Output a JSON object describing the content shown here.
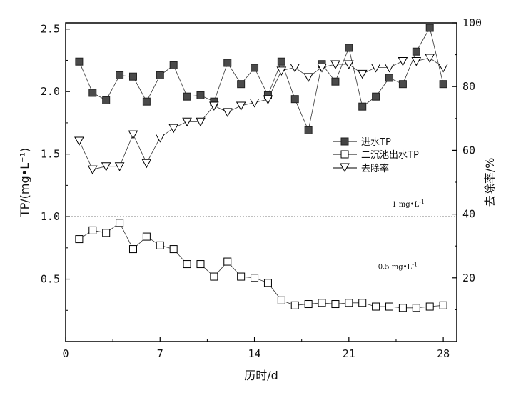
{
  "chart_data": {
    "type": "line",
    "title": "",
    "xlabel": "历时/d",
    "ylabel": "TP/(mg•L⁻¹)",
    "y2label": "去除率/%",
    "xlim": [
      0,
      29
    ],
    "ylim": [
      0,
      2.55
    ],
    "y2lim": [
      0,
      100
    ],
    "xticks": [
      0,
      7,
      14,
      21,
      28
    ],
    "yticks": [
      0.5,
      1.0,
      1.5,
      2.0,
      2.5
    ],
    "y2ticks": [
      20,
      40,
      60,
      80,
      100
    ],
    "reference_lines": [
      {
        "value": 1.0,
        "label": "1 mg•L",
        "sup": "-1"
      },
      {
        "value": 0.5,
        "label": "0.5 mg•L",
        "sup": "-1"
      }
    ],
    "series": [
      {
        "name": "进水TP",
        "axis": "left",
        "marker": "filled-square",
        "x": [
          1,
          2,
          3,
          4,
          5,
          6,
          7,
          8,
          9,
          10,
          11,
          12,
          13,
          14,
          15,
          16,
          17,
          18,
          19,
          20,
          21,
          22,
          23,
          24,
          25,
          26,
          27,
          28
        ],
        "values": [
          2.24,
          1.99,
          1.93,
          2.13,
          2.12,
          1.92,
          2.13,
          2.21,
          1.96,
          1.97,
          1.92,
          2.23,
          2.06,
          2.19,
          1.97,
          2.24,
          1.94,
          1.69,
          2.22,
          2.08,
          2.35,
          1.88,
          1.96,
          2.11,
          2.06,
          2.32,
          2.51,
          2.06
        ]
      },
      {
        "name": "二沉池出水TP",
        "axis": "left",
        "marker": "open-square",
        "x": [
          1,
          2,
          3,
          4,
          5,
          6,
          7,
          8,
          9,
          10,
          11,
          12,
          13,
          14,
          15,
          16,
          17,
          18,
          19,
          20,
          21,
          22,
          23,
          24,
          25,
          26,
          27,
          28
        ],
        "values": [
          0.82,
          0.89,
          0.87,
          0.95,
          0.74,
          0.84,
          0.77,
          0.74,
          0.62,
          0.62,
          0.52,
          0.64,
          0.52,
          0.51,
          0.47,
          0.33,
          0.29,
          0.3,
          0.31,
          0.3,
          0.31,
          0.31,
          0.28,
          0.28,
          0.27,
          0.27,
          0.28,
          0.29
        ]
      },
      {
        "name": "去除率",
        "axis": "right",
        "marker": "open-triangle-down",
        "x": [
          1,
          2,
          3,
          4,
          5,
          6,
          7,
          8,
          9,
          10,
          11,
          12,
          13,
          14,
          15,
          16,
          17,
          18,
          19,
          20,
          21,
          22,
          23,
          24,
          25,
          26,
          27,
          28
        ],
        "values": [
          63,
          54,
          55,
          55,
          65,
          56,
          64,
          67,
          69,
          69,
          74,
          72,
          74,
          75,
          76,
          85,
          86,
          83,
          86,
          87,
          87,
          84,
          86,
          86,
          88,
          88,
          89,
          86
        ]
      }
    ]
  }
}
